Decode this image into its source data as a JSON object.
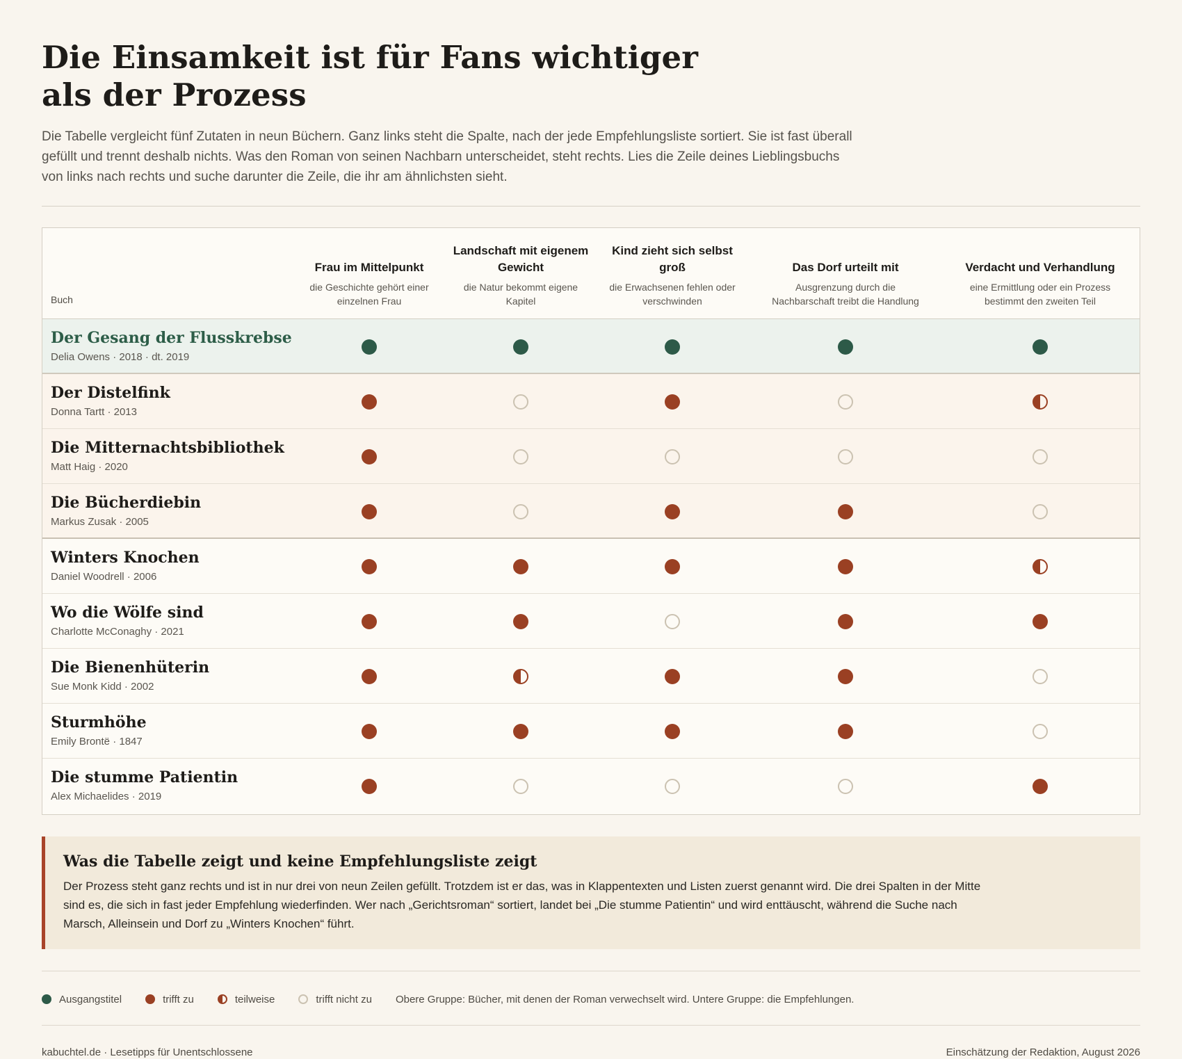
{
  "title": "Die Einsamkeit ist für Fans wichtiger als der Prozess",
  "intro": "Die Tabelle vergleicht fünf Zutaten in neun Büchern. Ganz links steht die Spalte, nach der jede Empfehlungsliste sortiert. Sie ist fast überall gefüllt und trennt deshalb nichts. Was den Roman von seinen Nachbarn unterscheidet, steht rechts. Lies die Zeile deines Lieblingsbuchs von links nach rechts und suche darunter die Zeile, die ihr am ähnlichsten sieht.",
  "table": {
    "book_header": "Buch",
    "columns": [
      {
        "title": "Frau im Mittelpunkt",
        "sub": "die Geschichte gehört einer einzelnen Frau"
      },
      {
        "title": "Landschaft mit eigenem Gewicht",
        "sub": "die Natur bekommt eigene Kapitel"
      },
      {
        "title": "Kind zieht sich selbst groß",
        "sub": "die Erwachsenen fehlen oder verschwinden"
      },
      {
        "title": "Das Dorf urteilt mit",
        "sub": "Ausgrenzung durch die Nachbarschaft treibt die Handlung"
      },
      {
        "title": "Verdacht und Verhandlung",
        "sub": "eine Ermittlung oder ein Prozess bestimmt den zweiten Teil"
      }
    ],
    "rows": [
      {
        "title": "Der Gesang der Flusskrebse",
        "meta": "Delia Owens · 2018 · dt. 2019",
        "group": "ref",
        "values": [
          "ref",
          "ref",
          "ref",
          "ref",
          "ref"
        ]
      },
      {
        "title": "Der Distelfink",
        "meta": "Donna Tartt · 2013",
        "group": "conf",
        "values": [
          "full",
          "none",
          "full",
          "none",
          "half"
        ]
      },
      {
        "title": "Die Mitternachtsbibliothek",
        "meta": "Matt Haig · 2020",
        "group": "conf",
        "values": [
          "full",
          "none",
          "none",
          "none",
          "none"
        ]
      },
      {
        "title": "Die Bücherdiebin",
        "meta": "Markus Zusak · 2005",
        "group": "conf",
        "values": [
          "full",
          "none",
          "full",
          "full",
          "none"
        ]
      },
      {
        "title": "Winters Knochen",
        "meta": "Daniel Woodrell · 2006",
        "group": "rec",
        "values": [
          "full",
          "full",
          "full",
          "full",
          "half"
        ]
      },
      {
        "title": "Wo die Wölfe sind",
        "meta": "Charlotte McConaghy · 2021",
        "group": "rec",
        "values": [
          "full",
          "full",
          "none",
          "full",
          "full"
        ]
      },
      {
        "title": "Die Bienenhüterin",
        "meta": "Sue Monk Kidd · 2002",
        "group": "rec",
        "values": [
          "full",
          "half",
          "full",
          "full",
          "none"
        ]
      },
      {
        "title": "Sturmhöhe",
        "meta": "Emily Brontë · 1847",
        "group": "rec",
        "values": [
          "full",
          "full",
          "full",
          "full",
          "none"
        ]
      },
      {
        "title": "Die stumme Patientin",
        "meta": "Alex Michaelides · 2019",
        "group": "rec",
        "values": [
          "full",
          "none",
          "none",
          "none",
          "full"
        ]
      }
    ]
  },
  "note": {
    "title": "Was die Tabelle zeigt und keine Empfehlungsliste zeigt",
    "body": "Der Prozess steht ganz rechts und ist in nur drei von neun Zeilen gefüllt. Trotzdem ist er das, was in Klappentexten und Listen zuerst genannt wird. Die drei Spalten in der Mitte sind es, die sich in fast jeder Empfehlung wiederfinden. Wer nach „Gerichtsroman“ sortiert, landet bei „Die stumme Patientin“ und wird enttäuscht, während die Suche nach Marsch, Alleinsein und Dorf zu „Winters Knochen“ führt."
  },
  "legend": {
    "ref": "Ausgangstitel",
    "full": "trifft zu",
    "half": "teilweise",
    "none": "trifft nicht zu",
    "groups": "Obere Gruppe: Bücher, mit denen der Roman verwechselt wird. Untere Gruppe: die Empfehlungen."
  },
  "footer": {
    "left": "kabuchtel.de · Lesetipps für Unentschlossene",
    "right": "Einschätzung der Redaktion, August 2026"
  },
  "colors": {
    "background": "#f9f5ee",
    "reference": "#2d5a48",
    "accent": "#9a4023",
    "empty": "#cbc2b1"
  }
}
